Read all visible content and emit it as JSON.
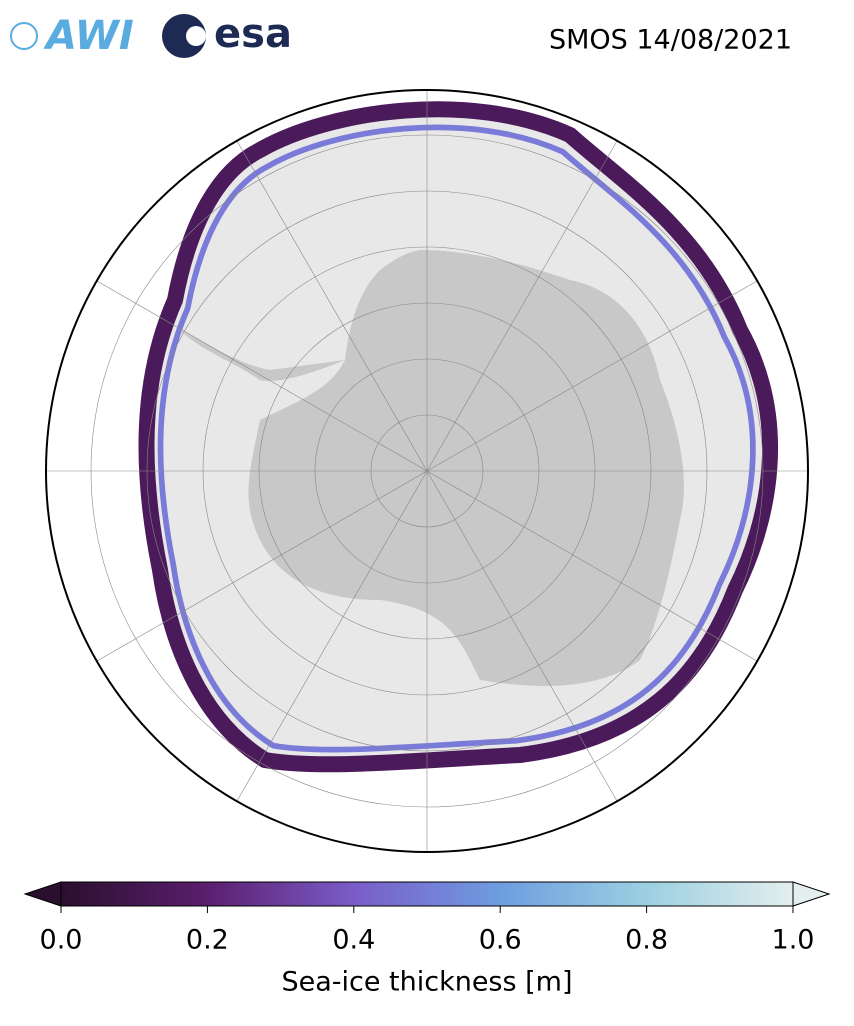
{
  "logos": [
    "AWI",
    "esa"
  ],
  "title": "SMOS 14/08/2021",
  "colorbar": {
    "label": "Sea-ice thickness [m]",
    "lim": [
      0,
      1
    ],
    "ticks": [
      {
        "value": 0,
        "label": "0.0"
      },
      0.2,
      0.4,
      0.6,
      0.8,
      {
        "value": 1,
        "label": "1.0"
      }
    ],
    "colors": [
      "#2a0f2e",
      "#5b1f6e",
      "#7a5cc8",
      "#6e9de0",
      "#9cd0e0",
      "#e3eeee"
    ]
  }
}
